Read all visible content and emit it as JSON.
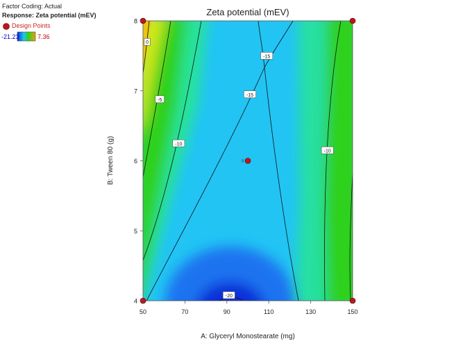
{
  "panel": {
    "factor_coding": "Factor Coding: Actual",
    "response": "Response: Zeta potential (mEV)",
    "design_points_label": "Design Points",
    "scale_min": "-21.23",
    "scale_max": "7.36",
    "design_point_color": "#c0161a",
    "scale_min_color": "#0000cc",
    "scale_max_color": "#cc0000"
  },
  "chart_data": {
    "type": "contour",
    "title": "Zeta potential (mEV)",
    "xlabel": "A: Glyceryl Monostearate (mg)",
    "ylabel": "B: Tween 80 (g)",
    "xlim": [
      50,
      150
    ],
    "ylim": [
      4,
      8
    ],
    "x_ticks": [
      "50",
      "70",
      "90",
      "110",
      "130",
      "150"
    ],
    "y_ticks": [
      "4",
      "5",
      "6",
      "7",
      "8"
    ],
    "response_range": [
      -21.23,
      7.36
    ],
    "color_scale": [
      "#0a2fd8",
      "#1a73f0",
      "#22c4f4",
      "#25e39a",
      "#2ed11f",
      "#cfe71a",
      "#f0c010"
    ],
    "contour_labels": [
      {
        "level": "0",
        "x": 52,
        "y": 7.7
      },
      {
        "level": "-5",
        "x": 58,
        "y": 6.88
      },
      {
        "level": "-10",
        "x": 67,
        "y": 6.25
      },
      {
        "level": "-15",
        "x": 101,
        "y": 6.95
      },
      {
        "level": "-15",
        "x": 109,
        "y": 7.5
      },
      {
        "level": "-10",
        "x": 138,
        "y": 6.15
      },
      {
        "level": "-20",
        "x": 91,
        "y": 4.08
      }
    ],
    "design_points": [
      {
        "x": 50,
        "y": 8,
        "replicates": ""
      },
      {
        "x": 150,
        "y": 8,
        "replicates": ""
      },
      {
        "x": 100,
        "y": 6,
        "replicates": "5"
      },
      {
        "x": 50,
        "y": 4,
        "replicates": ""
      },
      {
        "x": 150,
        "y": 4,
        "replicates": ""
      }
    ]
  }
}
